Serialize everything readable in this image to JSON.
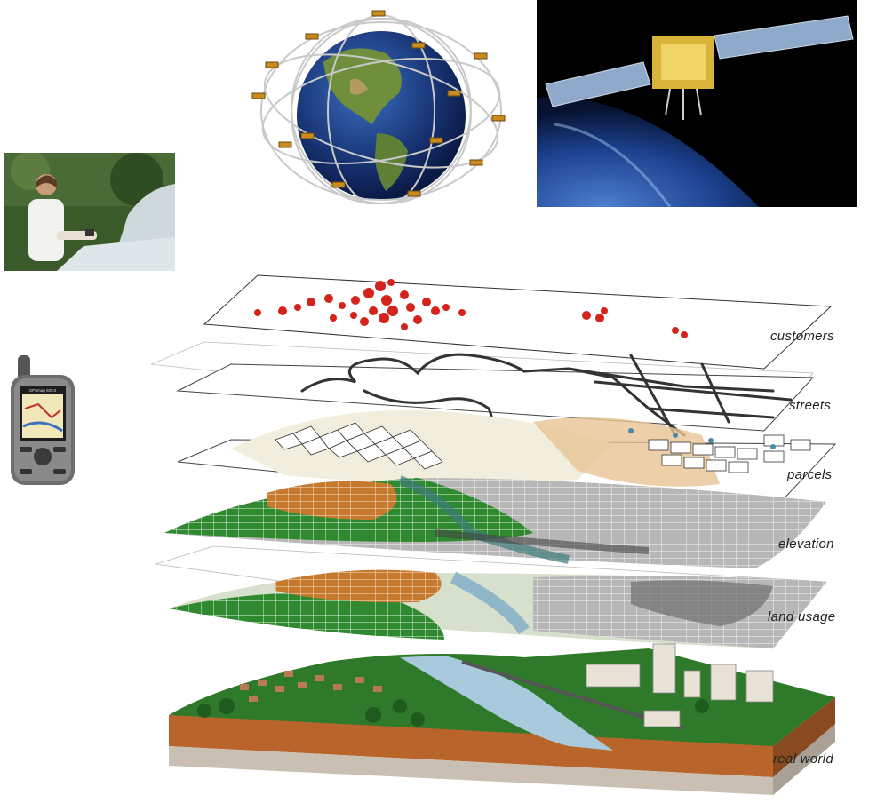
{
  "layer_labels": {
    "customers": "customers",
    "streets": "streets",
    "parcels": "parcels",
    "elevation": "elevation",
    "land_usage": "land usage",
    "real_world": "real world"
  },
  "colors": {
    "customer_dots": "#d4231a",
    "vegetation": "#2e8b2e",
    "urban": "#c8782e",
    "water": "#a9c9dc",
    "soil": "#b8642a",
    "grid_gray": "#a5a5a5"
  },
  "icons": [
    "gps-satellite-constellation",
    "satellite-in-orbit",
    "handheld-gps-receiver",
    "field-worker-photo"
  ],
  "gps_device_screen": {
    "top_text": "GPSmap 60CS"
  }
}
